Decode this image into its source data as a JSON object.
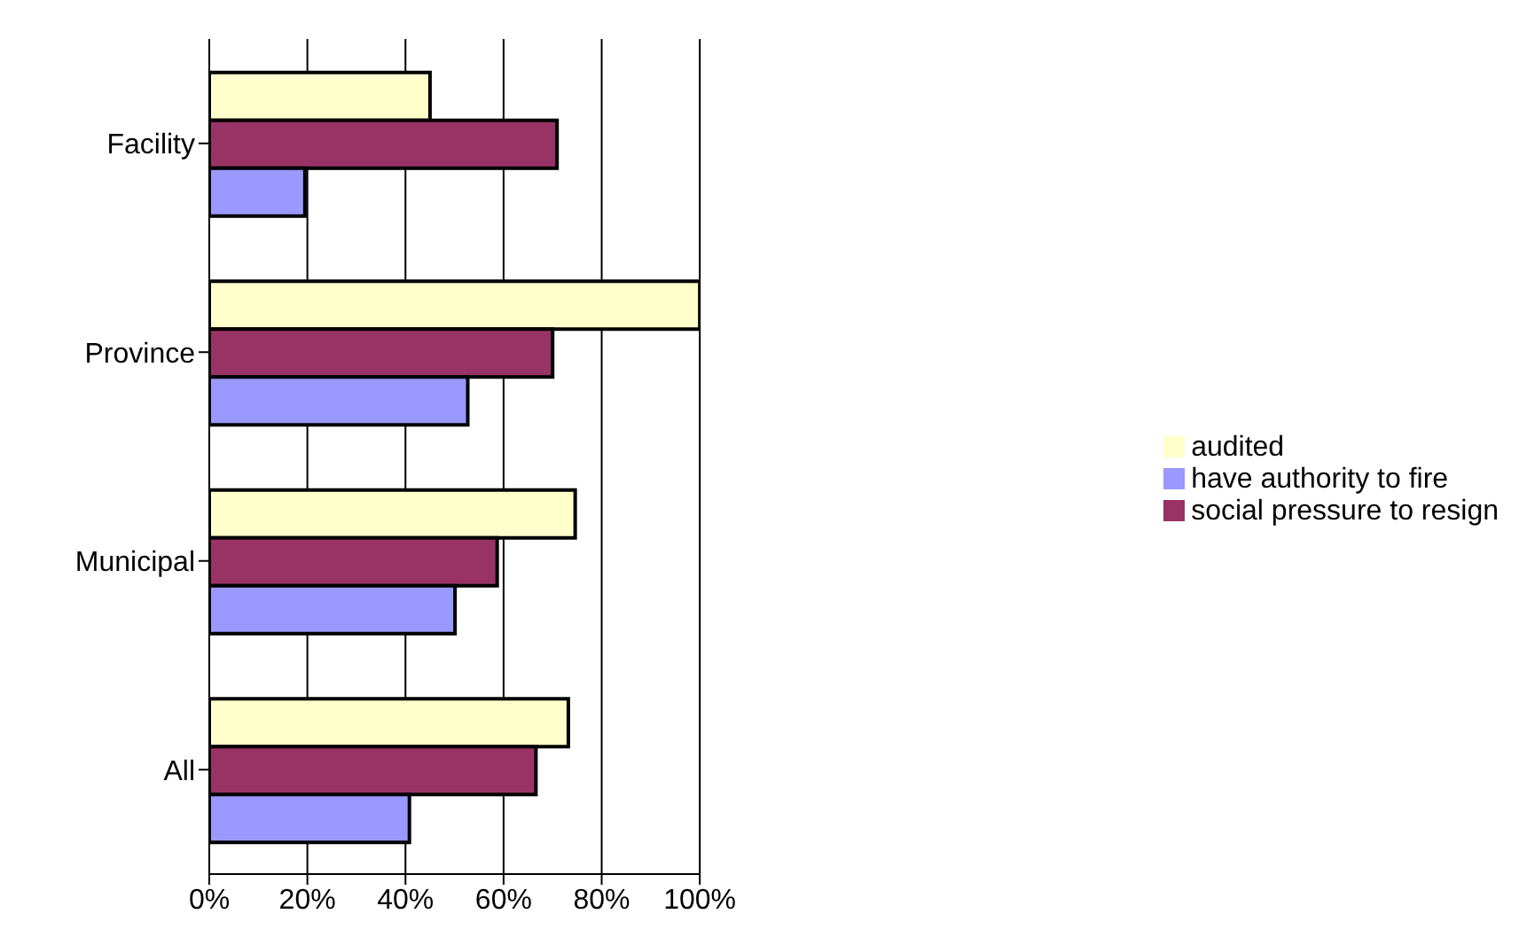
{
  "chart_data": {
    "type": "bar",
    "orientation": "horizontal",
    "categories": [
      "Facility",
      "Province",
      "Municipal",
      "All"
    ],
    "series": [
      {
        "name": "audited",
        "color": "#ffffcc",
        "values": [
          45.0,
          100,
          74.6,
          73.2
        ]
      },
      {
        "name": "social pressure to resign",
        "color": "#993366",
        "values": [
          70.9,
          70.0,
          58.7,
          66.6
        ]
      },
      {
        "name": "have authority to fire",
        "color": "#9999ff",
        "values": [
          19.5,
          52.7,
          50.1,
          40.8
        ]
      }
    ],
    "xlim": [
      0,
      100
    ],
    "xticks": [
      {
        "value": 0,
        "label": "0%"
      },
      {
        "value": 20,
        "label": "20%"
      },
      {
        "value": 40,
        "label": "40%"
      },
      {
        "value": 60,
        "label": "60%"
      },
      {
        "value": 80,
        "label": "80%"
      },
      {
        "value": 100,
        "label": "100%"
      }
    ],
    "grid": "x",
    "legend": "right"
  }
}
